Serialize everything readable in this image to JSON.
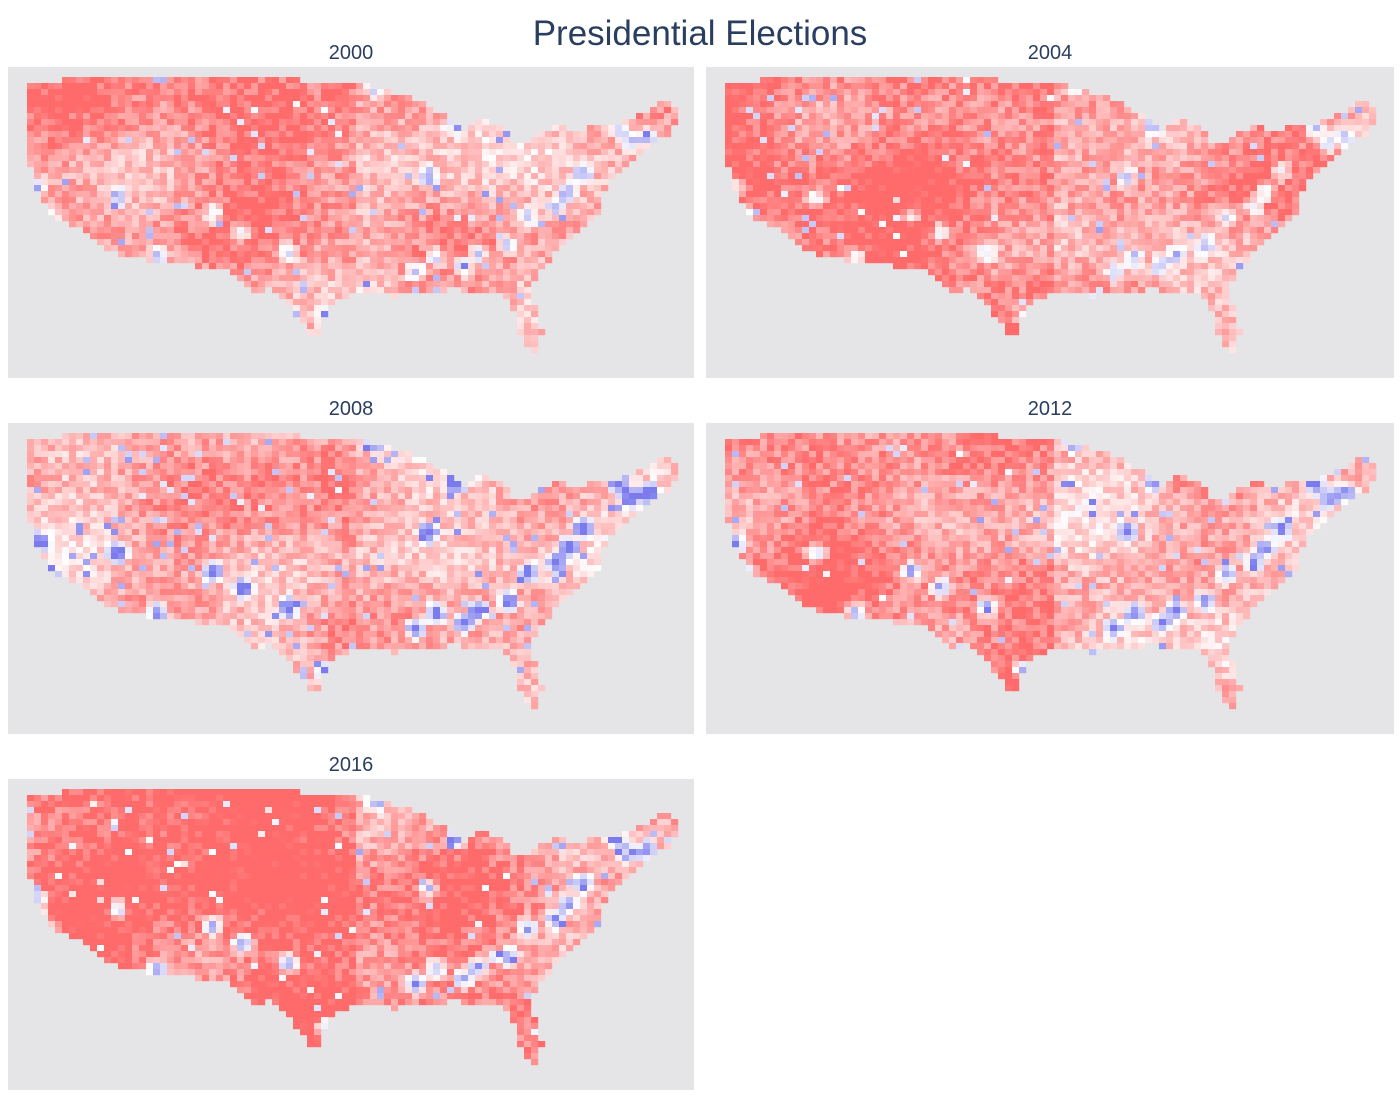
{
  "title": "Presidential Elections",
  "colors": {
    "republican": "#ff6b6b",
    "democrat": "#7b7bee",
    "neutral": "#ffffff",
    "background": "#e5e4e6"
  },
  "panels": [
    {
      "year": "2000",
      "republican_strength": 0.55,
      "blue_spots": 0.8
    },
    {
      "year": "2004",
      "republican_strength": 0.68,
      "blue_spots": 0.7
    },
    {
      "year": "2008",
      "republican_strength": 0.45,
      "blue_spots": 1.3
    },
    {
      "year": "2012",
      "republican_strength": 0.55,
      "blue_spots": 1.0
    },
    {
      "year": "2016",
      "republican_strength": 0.8,
      "blue_spots": 1.0
    }
  ]
}
